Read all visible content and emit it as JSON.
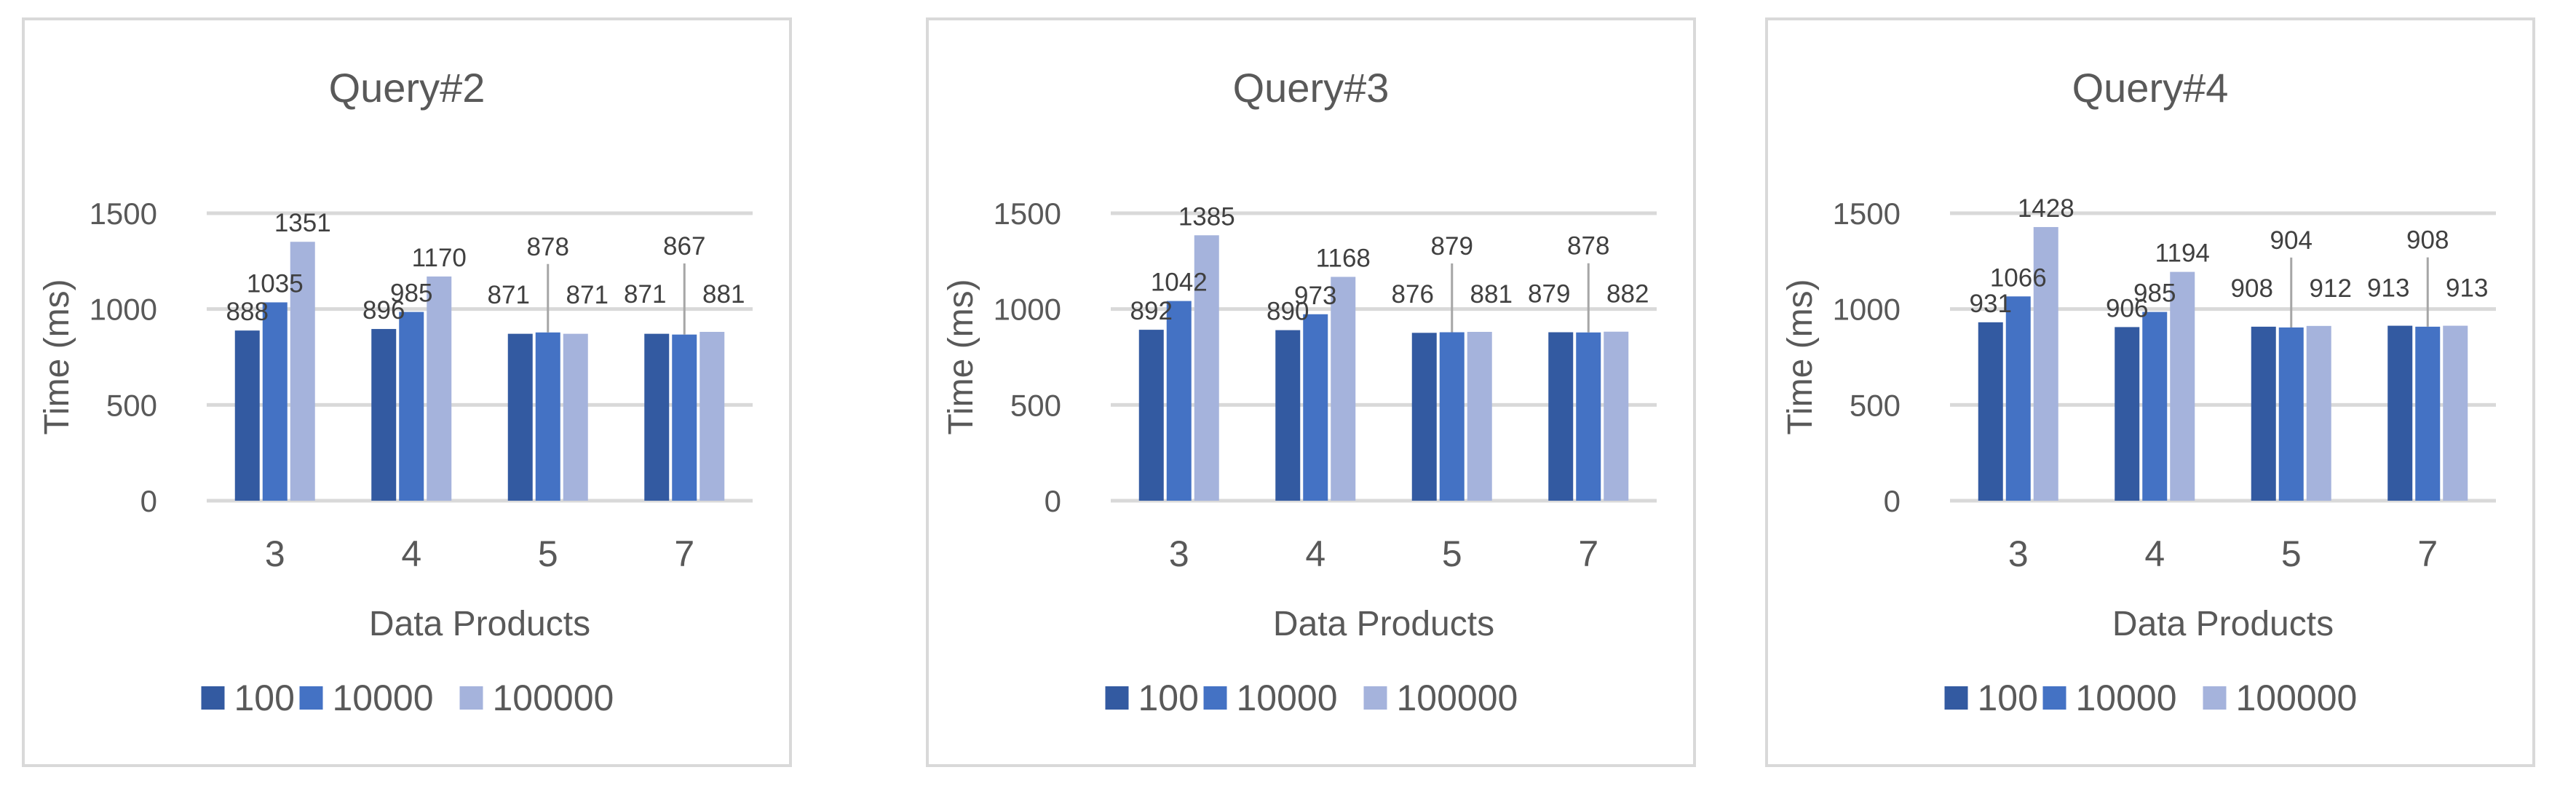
{
  "chart_data": [
    {
      "type": "bar",
      "title": "Query#2",
      "xlabel": "Data Products",
      "ylabel": "Time (ms)",
      "ylim": [
        0,
        1500
      ],
      "yticks": [
        0,
        500,
        1000,
        1500
      ],
      "grid": true,
      "legend": "bottom",
      "categories": [
        "3",
        "4",
        "5",
        "7"
      ],
      "series": [
        {
          "name": "100",
          "color": "#335aa1",
          "values": [
            888,
            896,
            871,
            871
          ]
        },
        {
          "name": "10000",
          "color": "#4472c4",
          "values": [
            1035,
            985,
            878,
            867
          ]
        },
        {
          "name": "100000",
          "color": "#a5b3dc",
          "values": [
            1351,
            1170,
            871,
            881
          ]
        }
      ]
    },
    {
      "type": "bar",
      "title": "Query#3",
      "xlabel": "Data Products",
      "ylabel": "Time (ms)",
      "ylim": [
        0,
        1500
      ],
      "yticks": [
        0,
        500,
        1000,
        1500
      ],
      "grid": true,
      "legend": "bottom",
      "categories": [
        "3",
        "4",
        "5",
        "7"
      ],
      "series": [
        {
          "name": "100",
          "color": "#335aa1",
          "values": [
            892,
            890,
            876,
            879
          ]
        },
        {
          "name": "10000",
          "color": "#4472c4",
          "values": [
            1042,
            973,
            879,
            878
          ]
        },
        {
          "name": "100000",
          "color": "#a5b3dc",
          "values": [
            1385,
            1168,
            881,
            882
          ]
        }
      ]
    },
    {
      "type": "bar",
      "title": "Query#4",
      "xlabel": "Data Products",
      "ylabel": "Time (ms)",
      "ylim": [
        0,
        1500
      ],
      "yticks": [
        0,
        500,
        1000,
        1500
      ],
      "grid": true,
      "legend": "bottom",
      "categories": [
        "3",
        "4",
        "5",
        "7"
      ],
      "series": [
        {
          "name": "100",
          "color": "#335aa1",
          "values": [
            931,
            906,
            908,
            913
          ]
        },
        {
          "name": "10000",
          "color": "#4472c4",
          "values": [
            1066,
            985,
            904,
            908
          ]
        },
        {
          "name": "100000",
          "color": "#a5b3dc",
          "values": [
            1428,
            1194,
            912,
            913
          ]
        }
      ]
    }
  ]
}
